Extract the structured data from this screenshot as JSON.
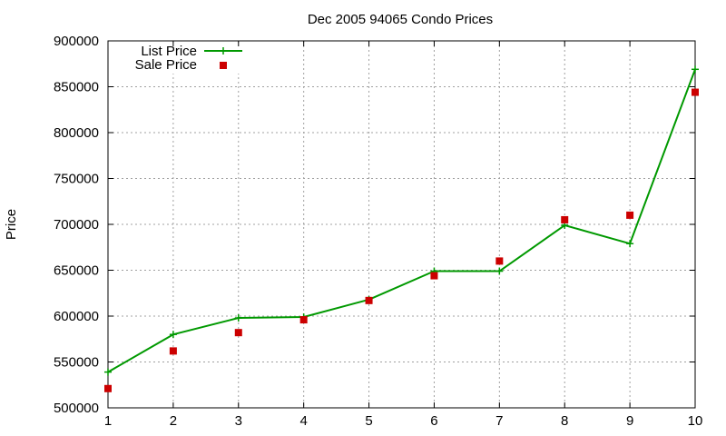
{
  "chart_data": {
    "type": "line",
    "title": "Dec 2005 94065 Condo Prices",
    "xlabel": "",
    "ylabel": "Price",
    "x": [
      1,
      2,
      3,
      4,
      5,
      6,
      7,
      8,
      9,
      10
    ],
    "xlim": [
      1,
      10
    ],
    "ylim": [
      500000,
      900000
    ],
    "xticks": [
      1,
      2,
      3,
      4,
      5,
      6,
      7,
      8,
      9,
      10
    ],
    "yticks": [
      500000,
      550000,
      600000,
      650000,
      700000,
      750000,
      800000,
      850000,
      900000
    ],
    "grid": true,
    "legend_position": "top-left",
    "series": [
      {
        "name": "List Price",
        "style": "line-with-plus-markers",
        "color": "#009900",
        "values": [
          539000,
          580000,
          598000,
          599000,
          618000,
          649000,
          649000,
          699000,
          679000,
          869000
        ]
      },
      {
        "name": "Sale Price",
        "style": "square-points",
        "color": "#cc0000",
        "values": [
          521000,
          562000,
          582000,
          596000,
          617000,
          644000,
          660000,
          705000,
          710000,
          844000
        ]
      }
    ]
  }
}
